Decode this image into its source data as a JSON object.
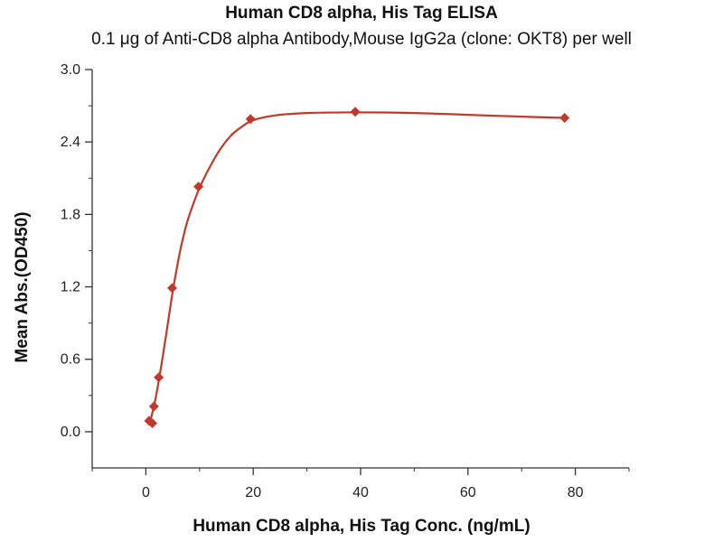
{
  "chart_data": {
    "type": "scatter",
    "title": "Human CD8 alpha, His Tag ELISA",
    "subtitle": "0.1 μg of Anti-CD8 alpha Antibody,Mouse IgG2a (clone: OKT8) per well",
    "xlabel": "Human CD8 alpha, His Tag Conc. (ng/mL)",
    "ylabel": "Mean Abs.(OD450)",
    "xlim": [
      -10,
      90
    ],
    "ylim": [
      -0.3,
      3.0
    ],
    "xticks": [
      0,
      20,
      40,
      60,
      80
    ],
    "yticks": [
      0.0,
      0.6,
      1.2,
      1.8,
      2.4,
      3.0
    ],
    "ytick_labels": [
      "0.0",
      "0.6",
      "1.2",
      "1.8",
      "2.4",
      "3.0"
    ],
    "grid": false,
    "points": [
      {
        "x": 0.6,
        "y": 0.09
      },
      {
        "x": 1.2,
        "y": 0.07
      },
      {
        "x": 1.5,
        "y": 0.21
      },
      {
        "x": 2.4,
        "y": 0.45
      },
      {
        "x": 4.9,
        "y": 1.19
      },
      {
        "x": 9.8,
        "y": 2.03
      },
      {
        "x": 19.5,
        "y": 2.59
      },
      {
        "x": 39.0,
        "y": 2.65
      },
      {
        "x": 78.0,
        "y": 2.6
      }
    ],
    "fit_curve": {
      "shape": "sigmoidal",
      "points": [
        {
          "x": 0.6,
          "y": 0.07
        },
        {
          "x": 1.0,
          "y": 0.12
        },
        {
          "x": 1.5,
          "y": 0.21
        },
        {
          "x": 2.0,
          "y": 0.32
        },
        {
          "x": 2.5,
          "y": 0.45
        },
        {
          "x": 3.0,
          "y": 0.58
        },
        {
          "x": 4.0,
          "y": 0.87
        },
        {
          "x": 5.0,
          "y": 1.16
        },
        {
          "x": 6.0,
          "y": 1.41
        },
        {
          "x": 7.0,
          "y": 1.62
        },
        {
          "x": 8.0,
          "y": 1.78
        },
        {
          "x": 10.0,
          "y": 2.02
        },
        {
          "x": 12.0,
          "y": 2.2
        },
        {
          "x": 14.0,
          "y": 2.35
        },
        {
          "x": 16.0,
          "y": 2.46
        },
        {
          "x": 18.0,
          "y": 2.53
        },
        {
          "x": 20.0,
          "y": 2.58
        },
        {
          "x": 24.0,
          "y": 2.62
        },
        {
          "x": 30.0,
          "y": 2.64
        },
        {
          "x": 39.0,
          "y": 2.645
        },
        {
          "x": 50.0,
          "y": 2.64
        },
        {
          "x": 60.0,
          "y": 2.625
        },
        {
          "x": 70.0,
          "y": 2.61
        },
        {
          "x": 78.0,
          "y": 2.6
        }
      ]
    },
    "colors": {
      "series": "#c0392b",
      "axis": "#333333"
    }
  }
}
